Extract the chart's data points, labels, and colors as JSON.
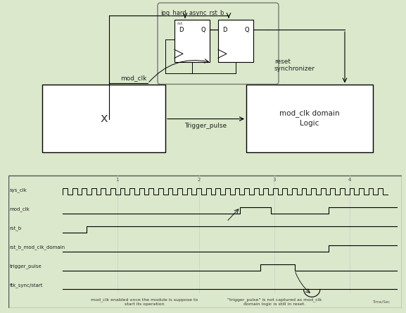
{
  "bg_color_top": "#dce8cc",
  "timing_bg": "#ffffff",
  "box_color": "#ffffff",
  "box_border": "#000000",
  "sync_border": "#777777",
  "signals": [
    "sys_clk",
    "mod_clk",
    "rst_b",
    "rst_b_mod_clk_domain",
    "trigger_pulse",
    "ftk_sync/start"
  ],
  "annotations": [
    "mod_clk enabled once the module is suppose to\nstart its operation",
    "\"trigger_pulse\" is not captured as mod_clk\ndomain logic is still in reset."
  ],
  "tick_labels": [
    "1",
    "2",
    "3",
    "4"
  ],
  "ipg_label": "ipg_hard_async_rst_b",
  "mod_clk_label": "mod_clk",
  "reset_sync_label": "reset\nsynchronizer",
  "x_label": "x",
  "trigger_label": "Trigger_pulse",
  "domain_label": "mod_clk domain\nLogic",
  "timesec_label": "Time/Sec"
}
